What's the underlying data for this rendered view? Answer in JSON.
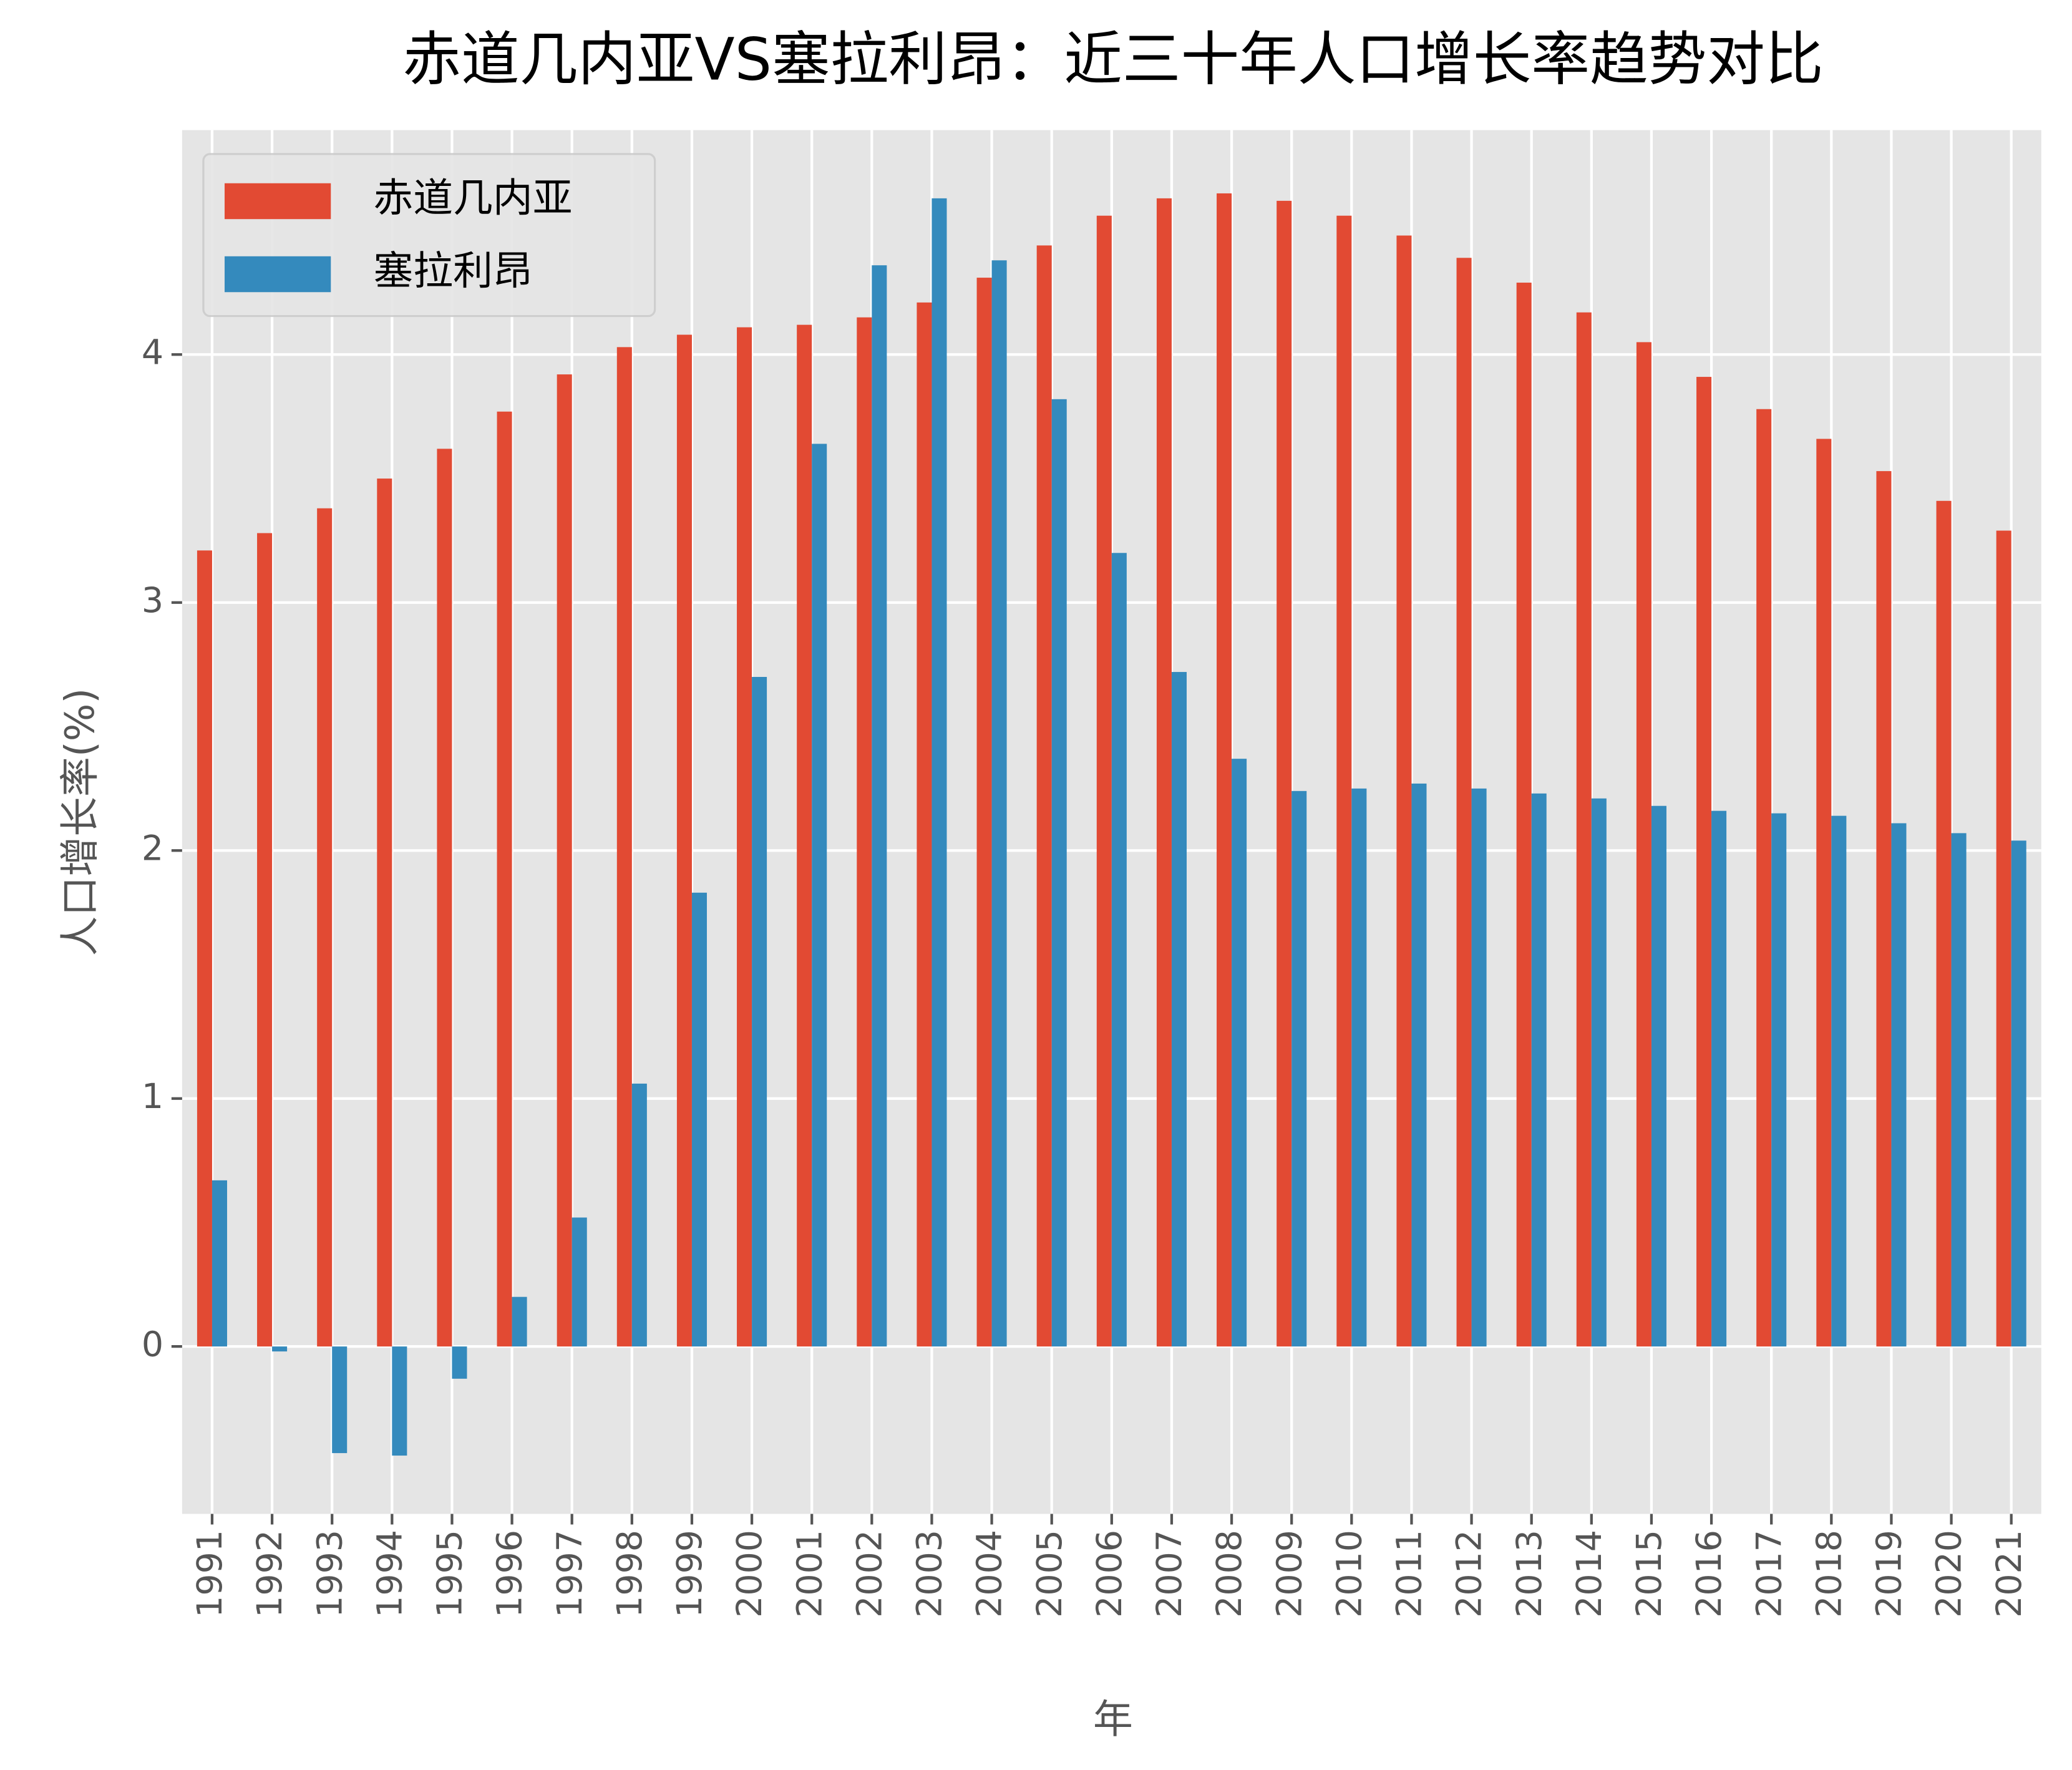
{
  "chart_data": {
    "type": "bar",
    "title": "赤道几内亚VS塞拉利昂：近三十年人口增长率趋势对比",
    "xlabel": "年",
    "ylabel": "人口增长率(%)",
    "categories": [
      "1991",
      "1992",
      "1993",
      "1994",
      "1995",
      "1996",
      "1997",
      "1998",
      "1999",
      "2000",
      "2001",
      "2002",
      "2003",
      "2004",
      "2005",
      "2006",
      "2007",
      "2008",
      "2009",
      "2010",
      "2011",
      "2012",
      "2013",
      "2014",
      "2015",
      "2016",
      "2017",
      "2018",
      "2019",
      "2020",
      "2021"
    ],
    "series": [
      {
        "name": "赤道几内亚",
        "color": "#E24A33",
        "values": [
          3.21,
          3.28,
          3.38,
          3.5,
          3.62,
          3.77,
          3.92,
          4.03,
          4.08,
          4.11,
          4.12,
          4.15,
          4.21,
          4.31,
          4.44,
          4.56,
          4.63,
          4.65,
          4.62,
          4.56,
          4.48,
          4.39,
          4.29,
          4.17,
          4.05,
          3.91,
          3.78,
          3.66,
          3.53,
          3.41,
          3.29
        ]
      },
      {
        "name": "塞拉利昂",
        "color": "#348ABD",
        "values": [
          0.67,
          -0.02,
          -0.43,
          -0.44,
          -0.13,
          0.2,
          0.52,
          1.06,
          1.83,
          2.7,
          3.64,
          4.36,
          4.63,
          4.38,
          3.82,
          3.2,
          2.72,
          2.37,
          2.24,
          2.25,
          2.27,
          2.25,
          2.23,
          2.21,
          2.18,
          2.16,
          2.15,
          2.14,
          2.11,
          2.07,
          2.04
        ]
      }
    ],
    "ylim": [
      -0.675,
      4.905
    ],
    "yticks": [
      0,
      1,
      2,
      3,
      4
    ],
    "grid": true,
    "legend": "upper left"
  }
}
